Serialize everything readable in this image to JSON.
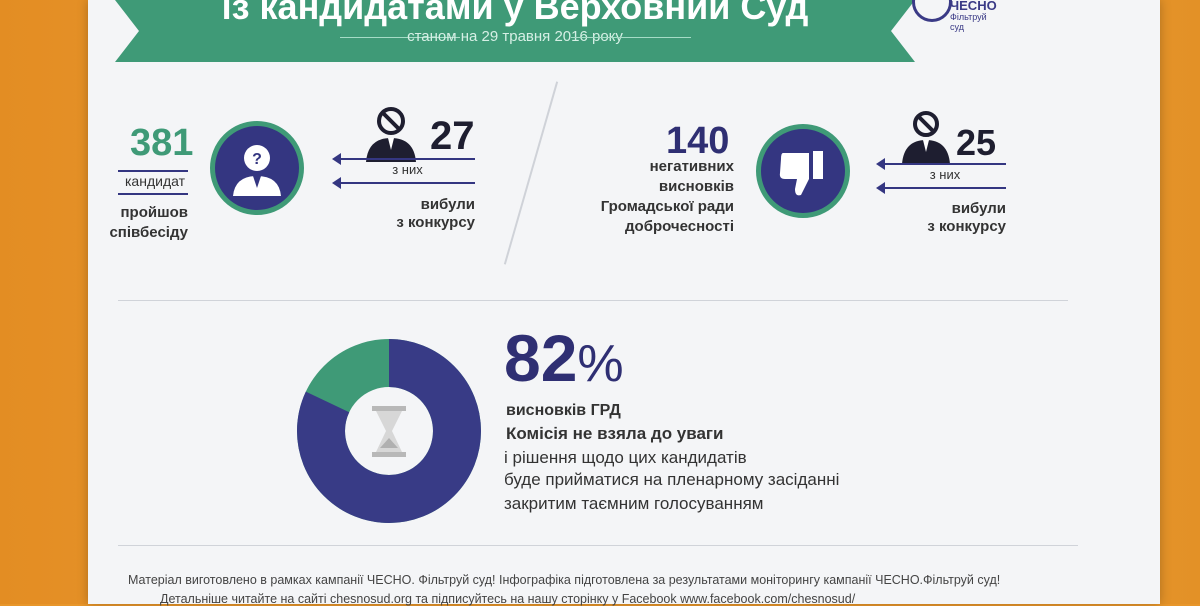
{
  "header": {
    "title": "із кандидатами у Верховний Суд",
    "date": "станом на 29 травня 2016 року"
  },
  "logo": {
    "name": "ЧЕСНО",
    "sub": "Фільтруй суд"
  },
  "left": {
    "total_number": "381",
    "total_label_1": "кандидат",
    "total_label_2": "пройшов",
    "total_label_3": "співбесіду",
    "dropped_number": "27",
    "of_them": "з них",
    "dropped_label_1": "вибули",
    "dropped_label_2": "з конкурсу"
  },
  "right": {
    "neg_number": "140",
    "neg_label_1": "негативних",
    "neg_label_2": "висновків",
    "neg_label_3": "Громадської ради",
    "neg_label_4": "доброчесності",
    "dropped_number": "25",
    "of_them": "з них",
    "dropped_label_1": "вибули",
    "dropped_label_2": "з конкурсу"
  },
  "stat": {
    "percent": "82",
    "percent_sign": "%",
    "line_1": "висновків ГРД",
    "line_2": "Комісія не взяла до уваги",
    "line_3": "і рішення щодо цих кандидатів",
    "line_4": "буде прийматися на пленарному засіданні",
    "line_5": "закритим таємним голосуванням"
  },
  "donut": {
    "value": 82,
    "main_color": "#383b86",
    "rest_color": "#3f9a77"
  },
  "footer": {
    "line_1": "Матеріал виготовлено в рамках кампанії ЧЕСНО. Фільтруй суд! Інфографіка підготовлена за результатами моніторингу кампанії ЧЕСНО.Фільтруй суд!",
    "line_2": "Детальніше читайте на сайті chesnosud.org та підписуйтесь на нашу сторінку у Facebook www.facebook.com/chesnosud/"
  },
  "icons": {
    "question_person": "question-person-icon",
    "ban_person": "ban-person-icon",
    "thumbs_down": "thumbs-down-icon",
    "hourglass": "hourglass-icon"
  }
}
